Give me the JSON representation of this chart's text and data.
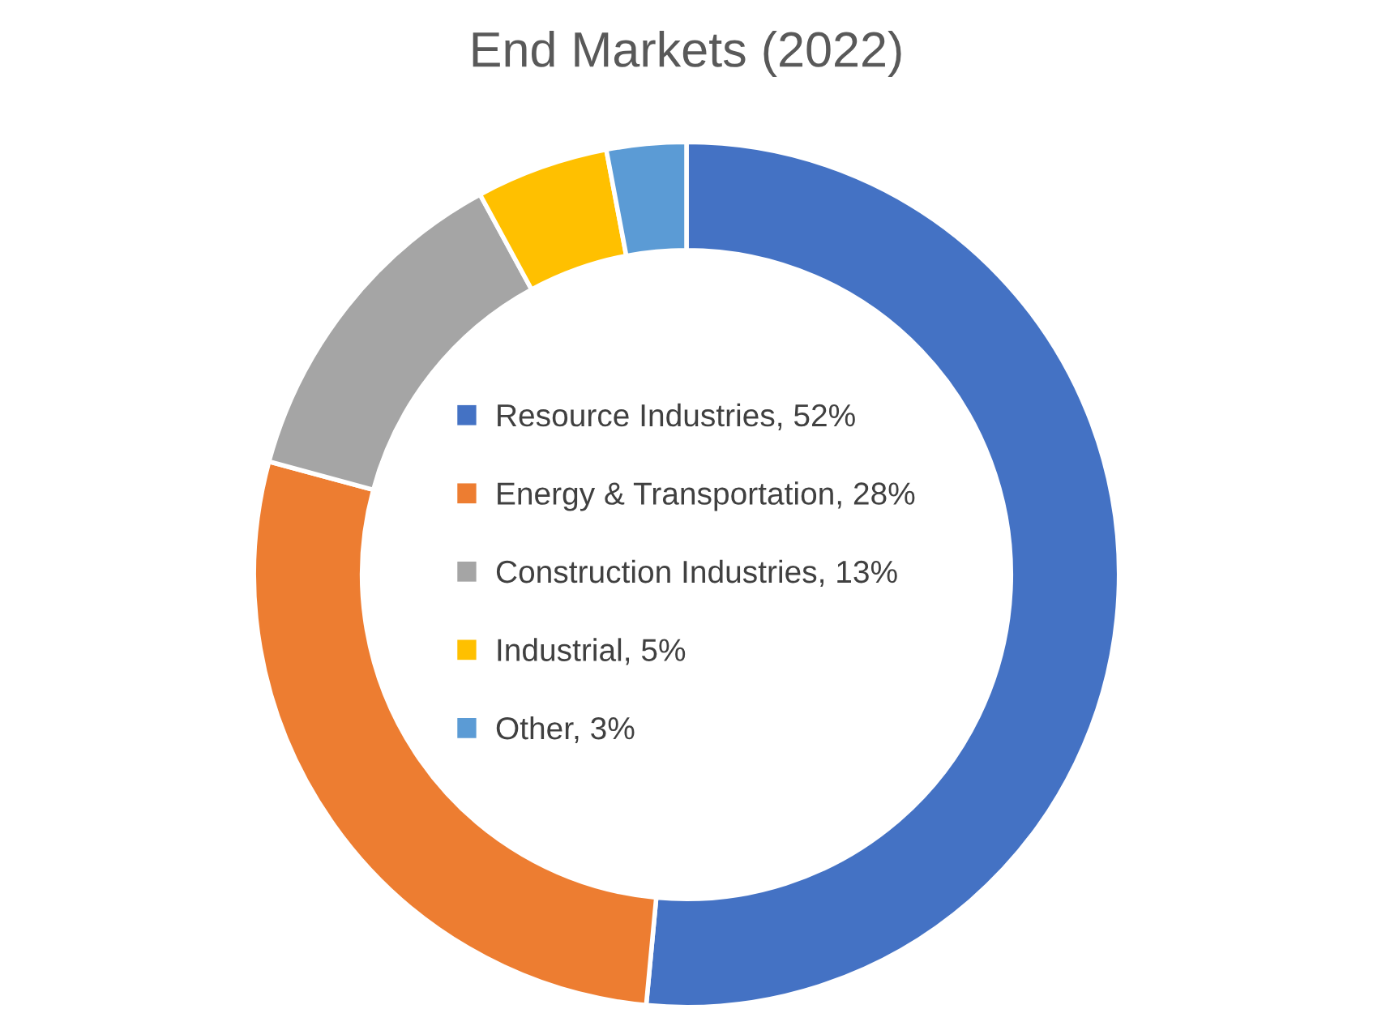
{
  "chart_data": {
    "type": "donut",
    "title": "End Markets (2022)",
    "categories": [
      "Resource Industries",
      "Energy & Transportation",
      "Construction Industries",
      "Industrial",
      "Other"
    ],
    "values": [
      52,
      28,
      13,
      5,
      3
    ],
    "value_labels": [
      "52%",
      "28%",
      "13%",
      "5%",
      "3%"
    ],
    "colors": [
      "#4472c4",
      "#ed7d31",
      "#a5a5a5",
      "#ffc000",
      "#5b9bd5"
    ],
    "legend": "center"
  }
}
